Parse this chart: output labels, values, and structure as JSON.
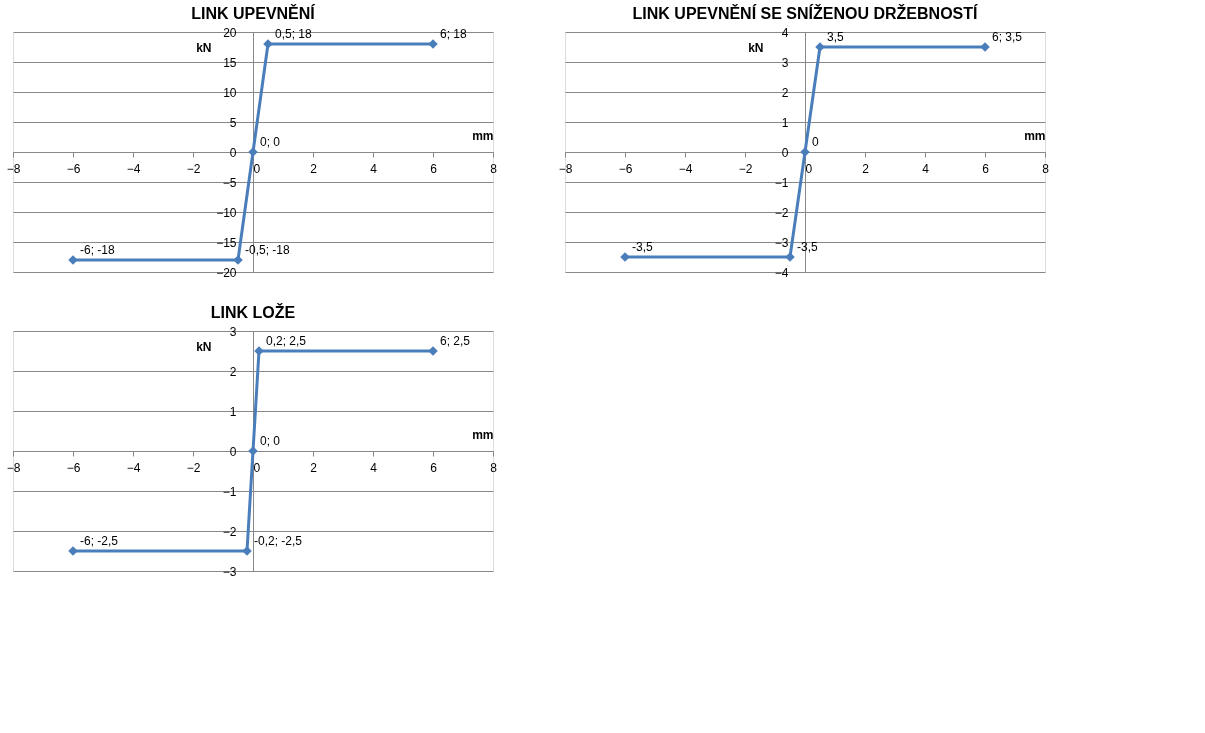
{
  "chart_data": [
    {
      "type": "line",
      "title": "LINK UPEVNĚNÍ",
      "xlabel": "mm",
      "ylabel": "kN",
      "x": [
        -6,
        -0.5,
        0,
        0.5,
        6
      ],
      "series": [
        {
          "color": "#4a7ebb",
          "values": [
            -18,
            -18,
            0,
            18,
            18
          ],
          "value_labels": [
            "-6; -18",
            "-0,5; -18",
            "0; 0",
            "0,5; 18",
            "6; 18"
          ]
        }
      ],
      "xlim": [
        -8,
        8
      ],
      "xticks": [
        -8,
        -6,
        -4,
        -2,
        0,
        2,
        4,
        6,
        8
      ],
      "ylim": [
        -20,
        20
      ],
      "yticks": [
        -20,
        -15,
        -10,
        -5,
        0,
        5,
        10,
        15,
        20
      ],
      "grid": "y",
      "marker": "diamond",
      "line_style": "solid"
    },
    {
      "type": "line",
      "title": "LINK UPEVNĚNÍ SE SNÍŽENOU DRŽEBNOSTÍ",
      "xlabel": "mm",
      "ylabel": "kN",
      "x": [
        -6,
        -0.5,
        0,
        0.5,
        6
      ],
      "series": [
        {
          "color": "#4a7ebb",
          "values": [
            -3.5,
            -3.5,
            0,
            3.5,
            3.5
          ],
          "value_labels": [
            "-3,5",
            "-3,5",
            "0",
            "3,5",
            "6; 3,5"
          ]
        }
      ],
      "xlim": [
        -8,
        8
      ],
      "xticks": [
        -8,
        -6,
        -4,
        -2,
        0,
        2,
        4,
        6,
        8
      ],
      "ylim": [
        -4,
        4
      ],
      "yticks": [
        -4,
        -3,
        -2,
        -1,
        0,
        1,
        2,
        3,
        4
      ],
      "grid": "y",
      "marker": "diamond",
      "line_style": "solid"
    },
    {
      "type": "line",
      "title": "LINK LOŽE",
      "xlabel": "mm",
      "ylabel": "kN",
      "x": [
        -6,
        -0.2,
        0,
        0.2,
        6
      ],
      "series": [
        {
          "color": "#4a7ebb",
          "values": [
            -2.5,
            -2.5,
            0,
            2.5,
            2.5
          ],
          "value_labels": [
            "-6; -2,5",
            "-0,2; -2,5",
            "0; 0",
            "0,2; 2,5",
            "6; 2,5"
          ]
        }
      ],
      "xlim": [
        -8,
        8
      ],
      "xticks": [
        -8,
        -6,
        -4,
        -2,
        0,
        2,
        4,
        6,
        8
      ],
      "ylim": [
        -3,
        3
      ],
      "yticks": [
        -3,
        -2,
        -1,
        0,
        1,
        2,
        3
      ],
      "grid": "y",
      "marker": "diamond",
      "line_style": "solid"
    }
  ]
}
